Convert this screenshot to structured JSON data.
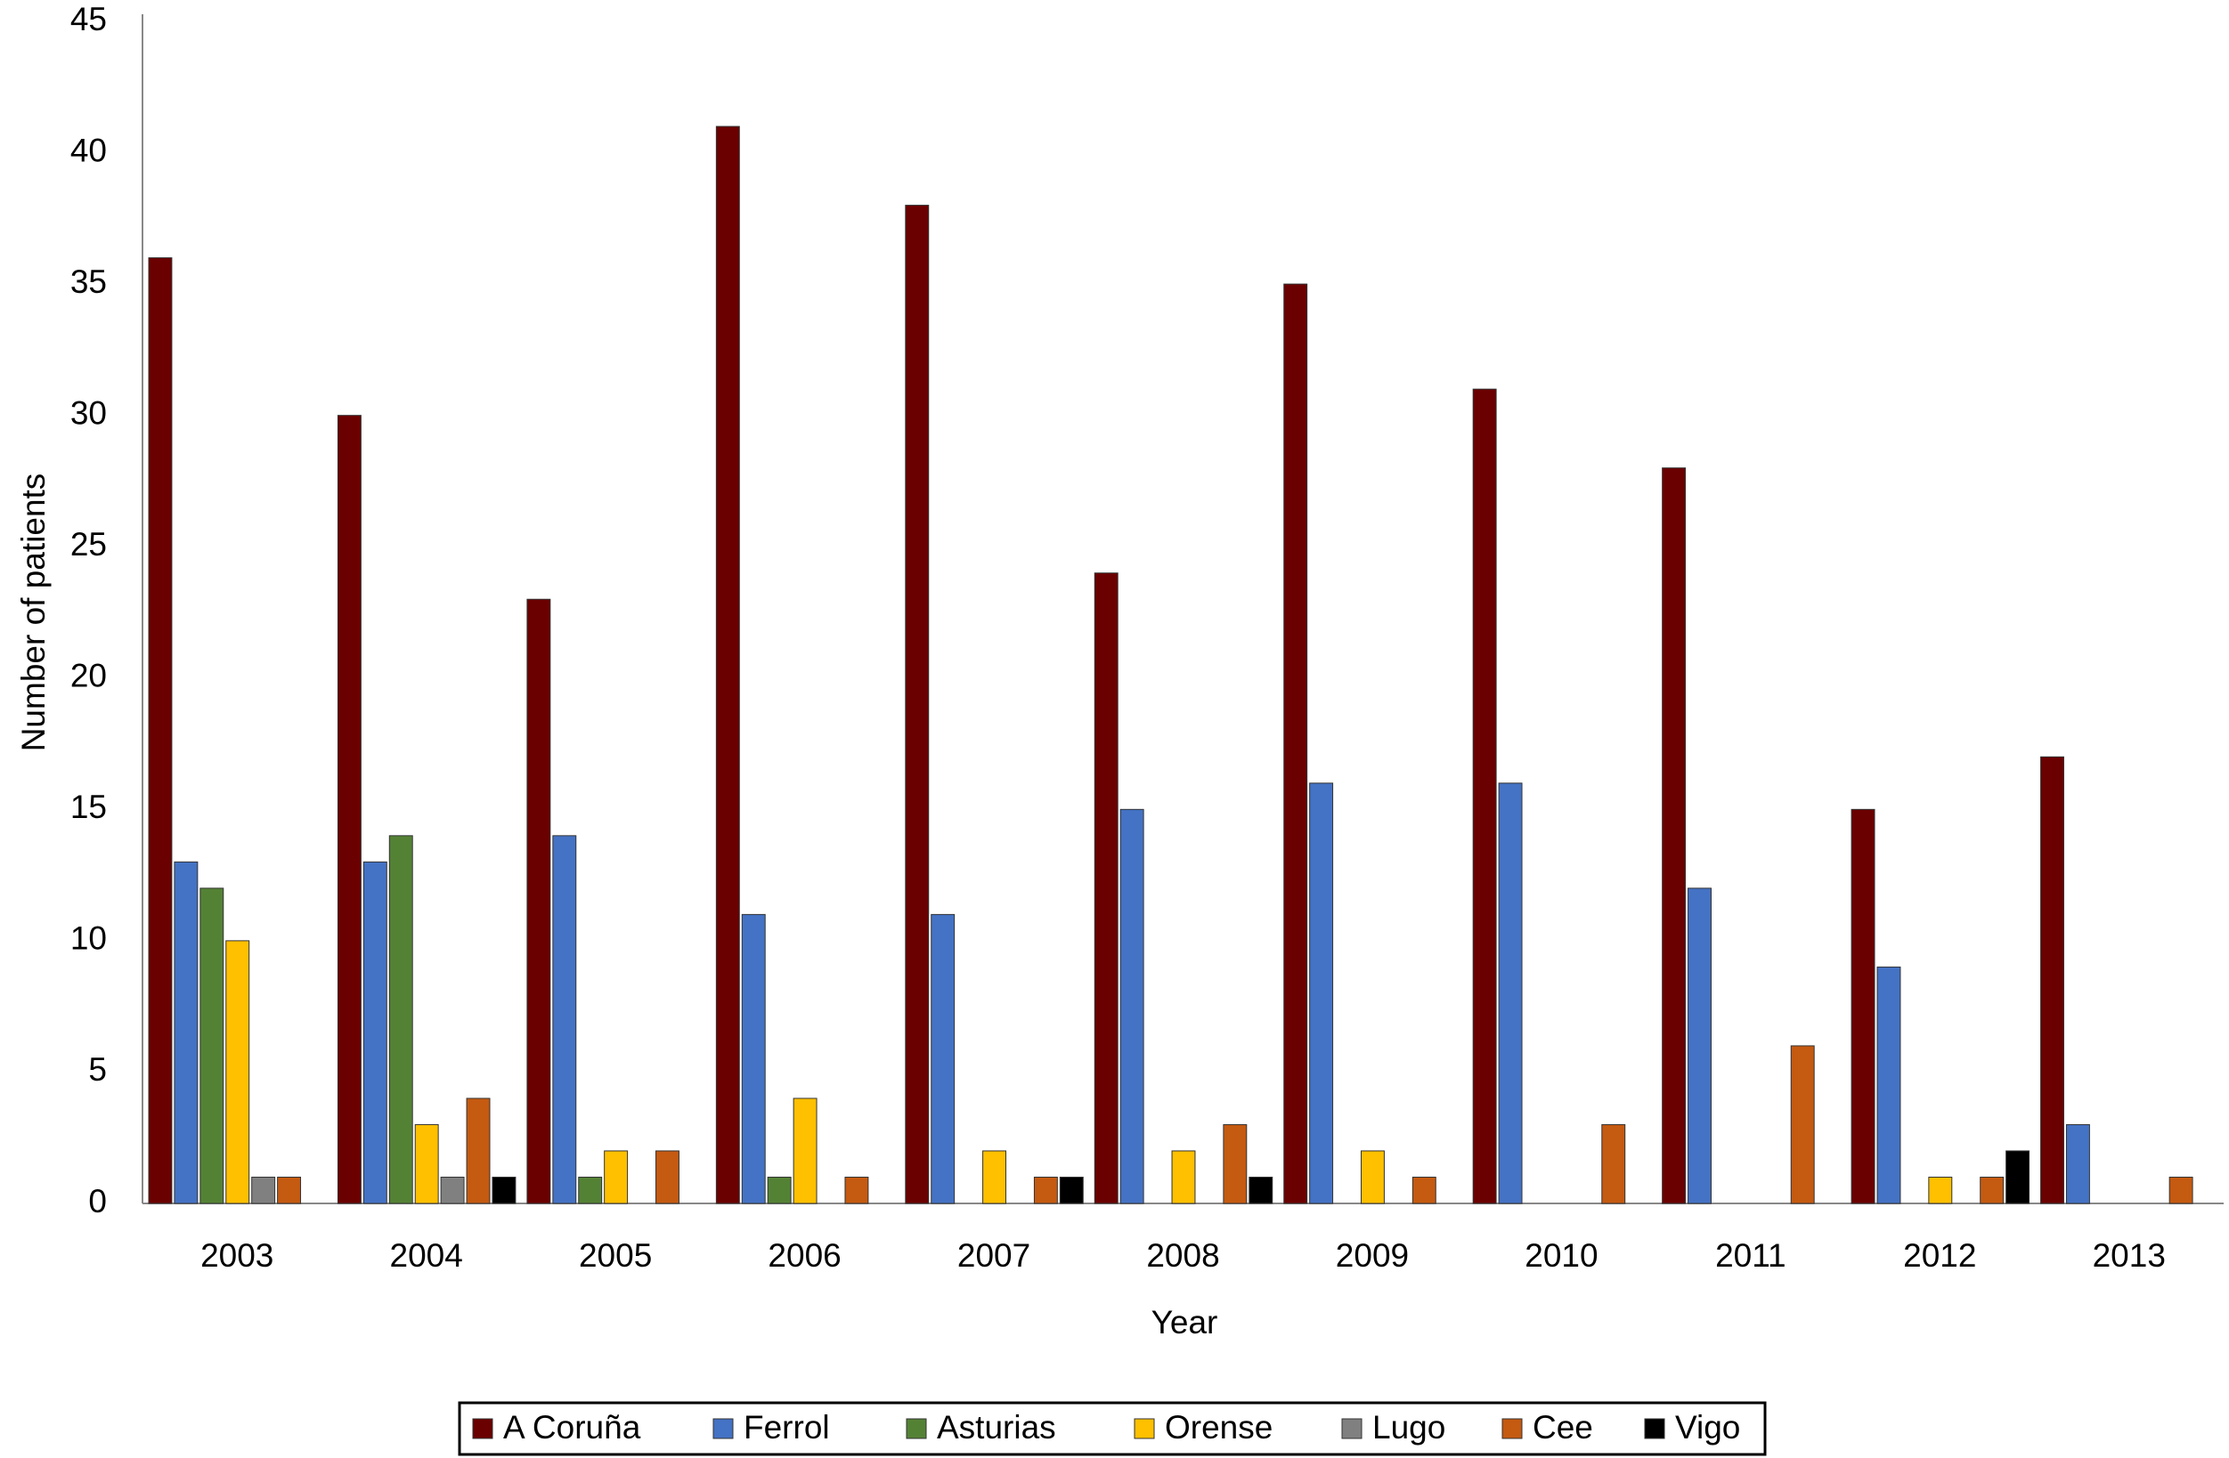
{
  "chart_data": {
    "type": "bar",
    "x_label": "Year",
    "y_label": "Number of patients",
    "categories": [
      "2003",
      "2004",
      "2005",
      "2006",
      "2007",
      "2008",
      "2009",
      "2010",
      "2011",
      "2012",
      "2013"
    ],
    "series": [
      {
        "name": "A Coruña",
        "color": "#6b0000",
        "values": [
          36,
          30,
          23,
          41,
          38,
          24,
          35,
          31,
          28,
          15,
          17
        ]
      },
      {
        "name": "Ferrol",
        "color": "#4472c4",
        "values": [
          13,
          13,
          14,
          11,
          11,
          15,
          16,
          16,
          12,
          9,
          3
        ]
      },
      {
        "name": "Asturias",
        "color": "#548235",
        "values": [
          12,
          14,
          1,
          1,
          0,
          0,
          0,
          0,
          0,
          0,
          0
        ]
      },
      {
        "name": "Orense",
        "color": "#ffc000",
        "values": [
          10,
          3,
          2,
          4,
          2,
          2,
          2,
          0,
          0,
          1,
          0
        ]
      },
      {
        "name": "Lugo",
        "color": "#808080",
        "values": [
          1,
          1,
          0,
          0,
          0,
          0,
          0,
          0,
          0,
          0,
          0
        ]
      },
      {
        "name": "Cee",
        "color": "#c55a11",
        "values": [
          1,
          4,
          2,
          1,
          1,
          3,
          1,
          3,
          6,
          1,
          1
        ]
      },
      {
        "name": "Vigo",
        "color": "#000000",
        "values": [
          0,
          1,
          0,
          0,
          1,
          1,
          0,
          0,
          0,
          2,
          0
        ]
      }
    ],
    "ylim": [
      0,
      45
    ],
    "yticks": [
      0,
      5,
      10,
      15,
      20,
      25,
      30,
      35,
      40,
      45
    ],
    "grid": false,
    "legend": "bottom"
  }
}
